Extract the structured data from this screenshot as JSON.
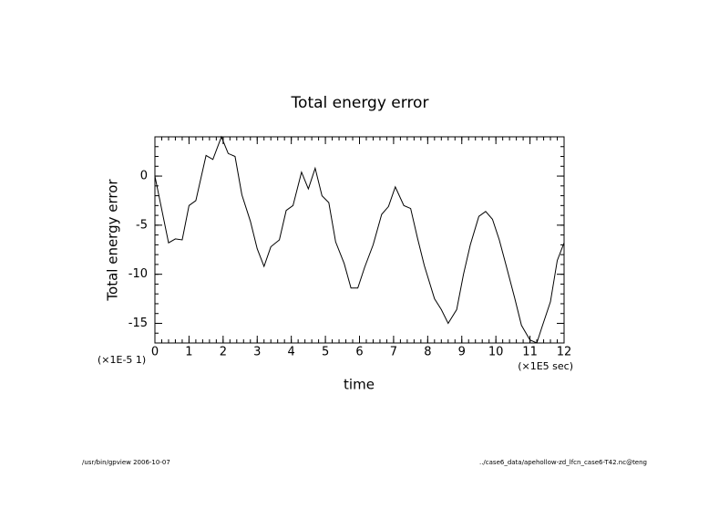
{
  "chart_data": {
    "type": "line",
    "title": "Total energy error",
    "ylabel": "Total energy error",
    "xlabel": "time",
    "y_unit_note": "(×1E-5 1)",
    "x_unit_note": "(×1E5 sec)",
    "footer_left": "/usr/bin/gpview 2006-10-07",
    "footer_right": "../case6_data/apehollow-zd_lfcn_case6-T42.nc@teng",
    "color": "#000000",
    "xlim": [
      0,
      12
    ],
    "ylim": [
      -17,
      4
    ],
    "xticks": [
      0,
      1,
      2,
      3,
      4,
      5,
      6,
      7,
      8,
      9,
      10,
      11,
      12
    ],
    "yticks": [
      -15,
      -10,
      -5,
      0
    ],
    "series": [
      {
        "name": "Total energy error",
        "x": [
          0,
          0.4,
          0.6,
          0.8,
          1.0,
          1.2,
          1.5,
          1.7,
          1.95,
          2.15,
          2.35,
          2.55,
          2.8,
          3.0,
          3.2,
          3.4,
          3.65,
          3.85,
          4.05,
          4.3,
          4.5,
          4.7,
          4.9,
          5.1,
          5.3,
          5.55,
          5.75,
          5.95,
          6.15,
          6.4,
          6.65,
          6.85,
          7.05,
          7.3,
          7.5,
          7.7,
          7.9,
          8.2,
          8.4,
          8.6,
          8.85,
          9.05,
          9.25,
          9.5,
          9.7,
          9.9,
          10.1,
          10.3,
          10.55,
          10.75,
          11.0,
          11.2,
          11.35,
          11.6,
          11.8,
          12.0
        ],
        "values": [
          0,
          -6.8,
          -6.4,
          -6.5,
          -3.0,
          -2.5,
          2.1,
          1.7,
          4.0,
          2.3,
          2.0,
          -1.9,
          -4.6,
          -7.4,
          -9.2,
          -7.2,
          -6.5,
          -3.5,
          -3.0,
          0.4,
          -1.3,
          0.8,
          -2.0,
          -2.7,
          -6.7,
          -8.9,
          -11.4,
          -11.4,
          -9.3,
          -7.0,
          -3.9,
          -3.1,
          -1.1,
          -3.0,
          -3.3,
          -6.3,
          -9.1,
          -12.5,
          -13.6,
          -15.0,
          -13.6,
          -10.0,
          -7.0,
          -4.1,
          -3.6,
          -4.4,
          -6.5,
          -9.1,
          -12.4,
          -15.2,
          -16.7,
          -17.0,
          -15.4,
          -12.8,
          -8.6,
          -6.8
        ]
      }
    ]
  }
}
